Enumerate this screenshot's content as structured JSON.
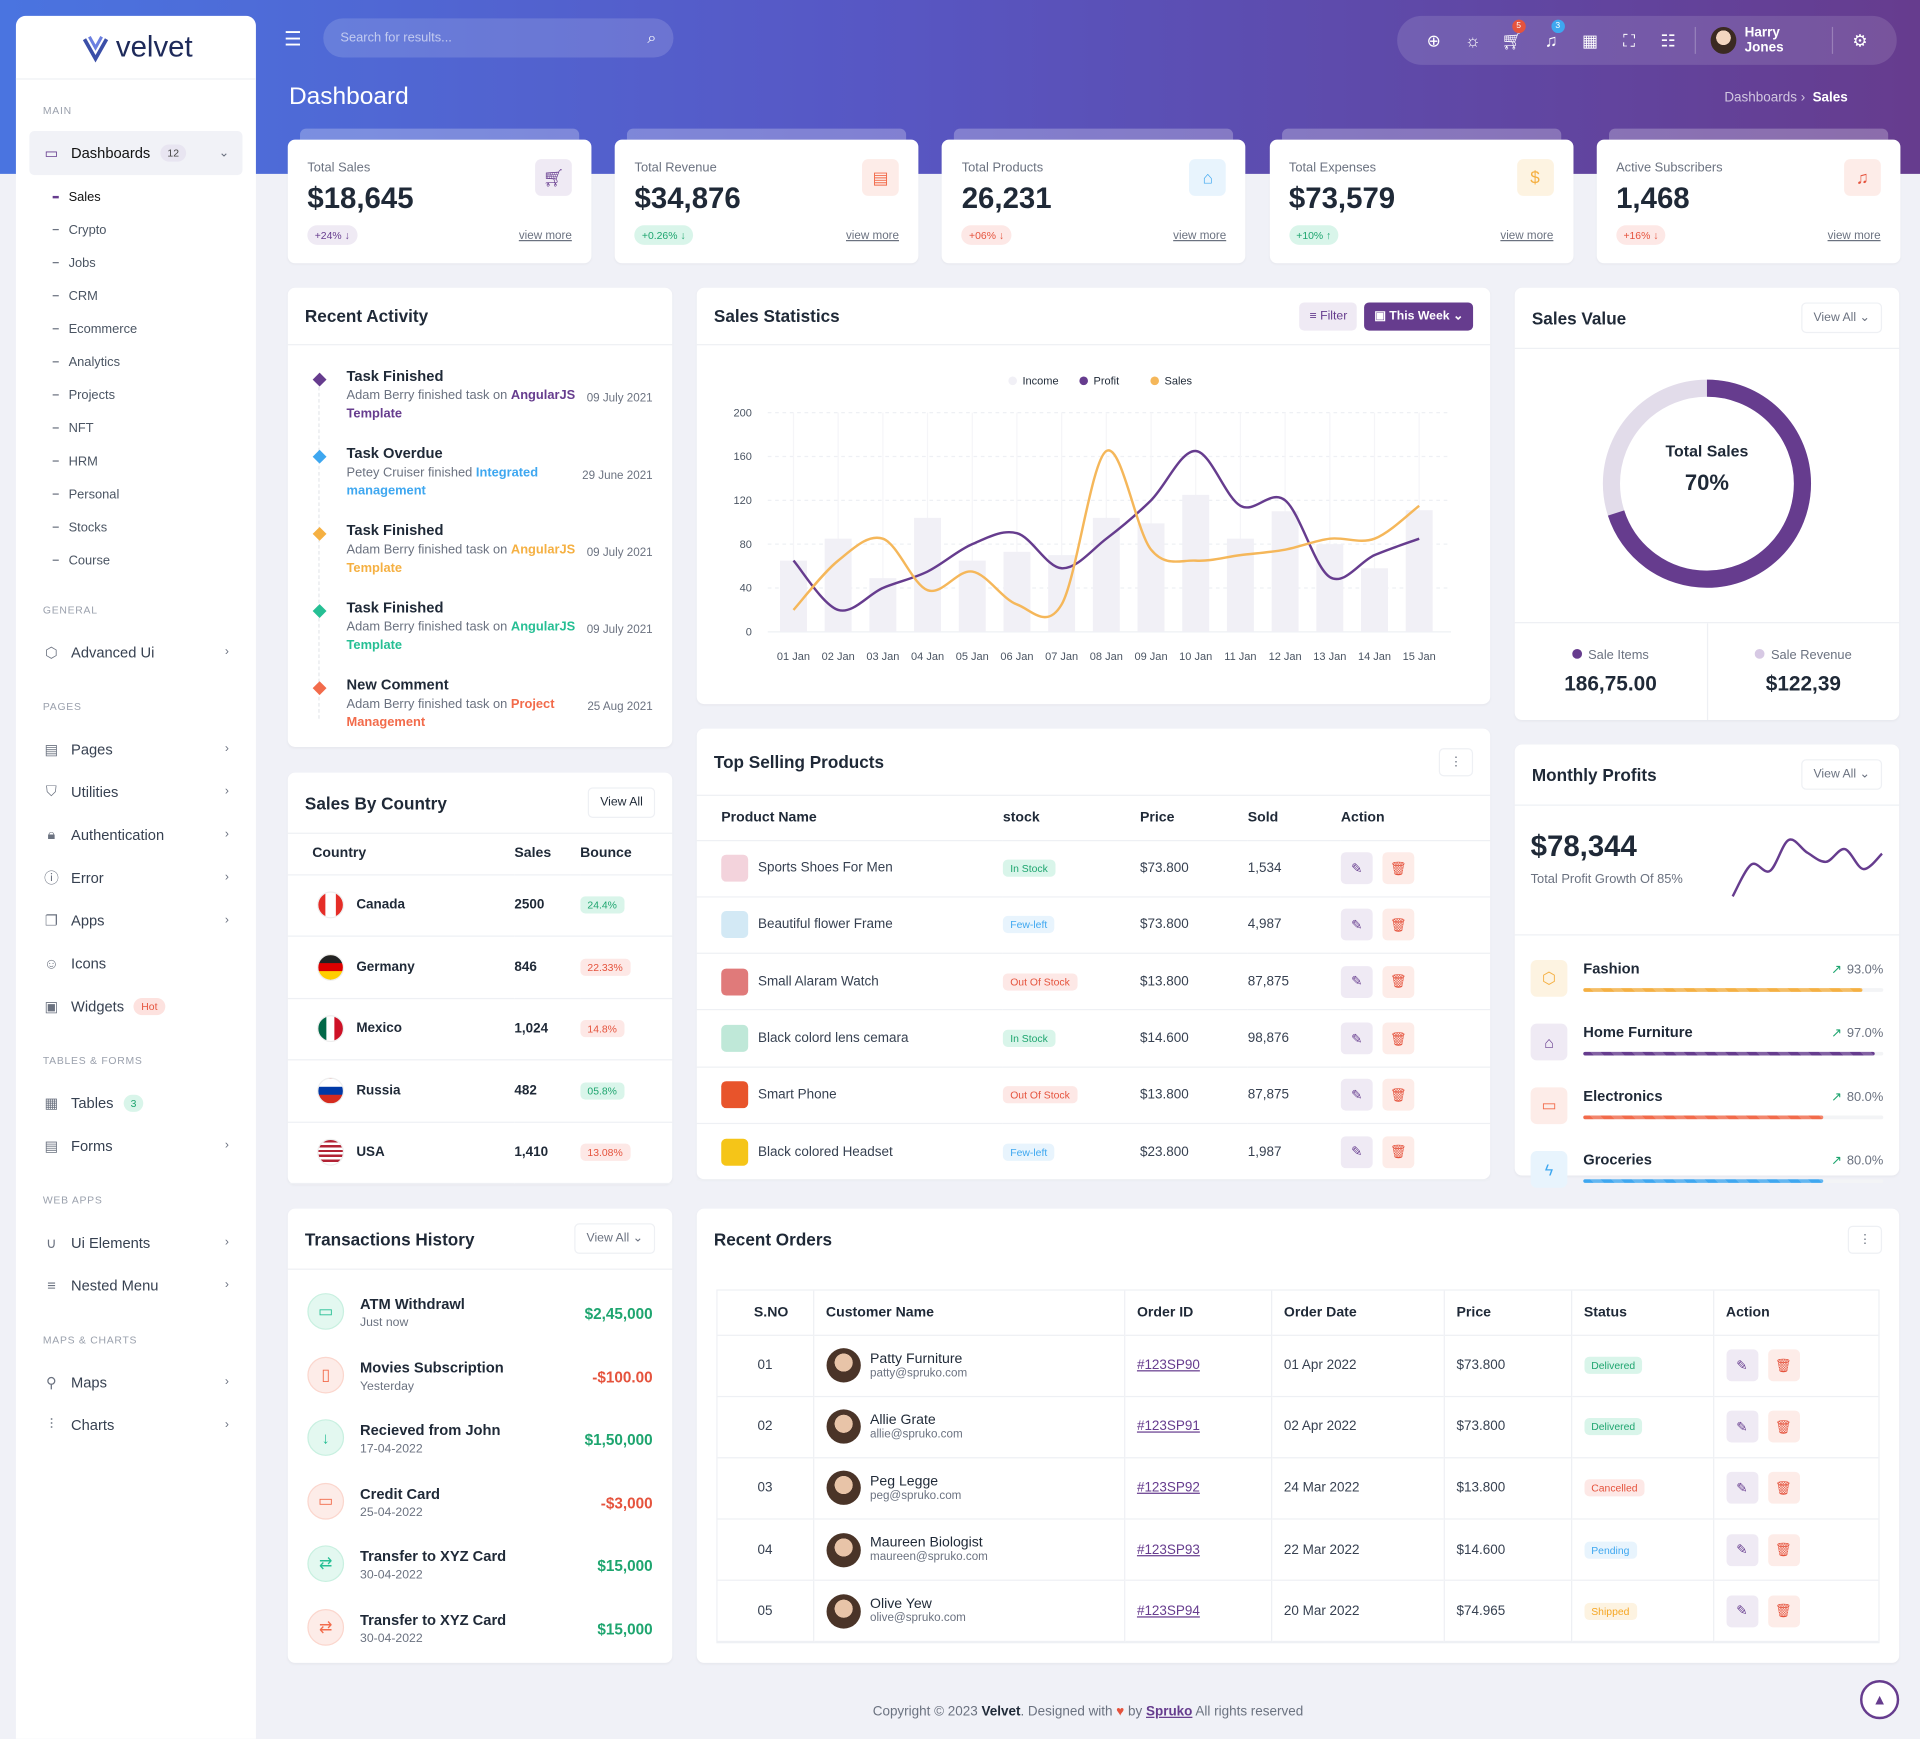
{
  "app": {
    "logo_text": "velvet",
    "page_title": "Dashboard",
    "breadcrumb": [
      "Dashboards",
      "Sales"
    ],
    "primary_color": "#663c8e"
  },
  "topbar": {
    "search_placeholder": "Search for results...",
    "cart_badge": "5",
    "notif_badge": "3",
    "user_name": "Harry Jones",
    "icons": [
      "globe-icon",
      "sun-icon",
      "cart-icon",
      "bell-icon",
      "apps-grid-icon",
      "fullscreen-icon",
      "sliders-icon",
      "gear-icon"
    ]
  },
  "sidebar": {
    "sections": [
      {
        "title": "MAIN",
        "items": [
          {
            "label": "Dashboards",
            "icon": "monitor-icon",
            "badge": "12",
            "open": true,
            "sub": [
              "Sales",
              "Crypto",
              "Jobs",
              "CRM",
              "Ecommerce",
              "Analytics",
              "Projects",
              "NFT",
              "HRM",
              "Personal",
              "Stocks",
              "Course"
            ]
          }
        ]
      },
      {
        "title": "GENERAL",
        "items": [
          {
            "label": "Advanced Ui",
            "icon": "box-icon"
          }
        ]
      },
      {
        "title": "PAGES",
        "items": [
          {
            "label": "Pages",
            "icon": "file-icon"
          },
          {
            "label": "Utilities",
            "icon": "shield-icon"
          },
          {
            "label": "Authentication",
            "icon": "lock-icon"
          },
          {
            "label": "Error",
            "icon": "alert-icon"
          },
          {
            "label": "Apps",
            "icon": "apps-icon"
          },
          {
            "label": "Icons",
            "icon": "smile-icon",
            "nochev": true
          },
          {
            "label": "Widgets",
            "icon": "widget-icon",
            "badge": "Hot",
            "badge_type": "hot",
            "nochev": true
          }
        ]
      },
      {
        "title": "TABLES & FORMS",
        "items": [
          {
            "label": "Tables",
            "icon": "table-icon",
            "badge": "3",
            "badge_type": "green",
            "nochev": true
          },
          {
            "label": "Forms",
            "icon": "form-icon"
          }
        ]
      },
      {
        "title": "WEB APPS",
        "items": [
          {
            "label": "Ui Elements",
            "icon": "magnet-icon"
          },
          {
            "label": "Nested Menu",
            "icon": "menu-icon"
          }
        ]
      },
      {
        "title": "MAPS & CHARTS",
        "items": [
          {
            "label": "Maps",
            "icon": "map-pin-icon"
          },
          {
            "label": "Charts",
            "icon": "chart-icon"
          }
        ]
      }
    ]
  },
  "stats": [
    {
      "label": "Total Sales",
      "value": "$18,645",
      "change": "+24%",
      "dir": "down",
      "more": "view more",
      "icon": "cart-icon",
      "color": "#663c8e",
      "bg": "#efeaf4",
      "pill_bg": "#efeaf4"
    },
    {
      "label": "Total Revenue",
      "value": "$34,876",
      "change": "+0.26%",
      "dir": "down",
      "more": "view more",
      "icon": "archive-icon",
      "color": "#f26b4b",
      "bg": "#fdece8",
      "pill_bg": "#d9f5ea",
      "pill_color": "#1ea56f"
    },
    {
      "label": "Total Products",
      "value": "26,231",
      "change": "+06%",
      "dir": "down",
      "more": "view more",
      "icon": "bag-icon",
      "color": "#3ea7f0",
      "bg": "#e8f4fd",
      "pill_bg": "#fde8e6",
      "pill_color": "#e5533d"
    },
    {
      "label": "Total Expenses",
      "value": "$73,579",
      "change": "+10%",
      "dir": "up",
      "more": "view more",
      "icon": "dollar-icon",
      "color": "#f5b042",
      "bg": "#fdf3e1",
      "pill_bg": "#d9f5ea",
      "pill_color": "#1ea56f"
    },
    {
      "label": "Active Subscribers",
      "value": "1,468",
      "change": "+16%",
      "dir": "down",
      "more": "view more",
      "icon": "bell-icon",
      "color": "#e5533d",
      "bg": "#fdece8",
      "pill_bg": "#fde8e6",
      "pill_color": "#e5533d"
    }
  ],
  "recent_activity": {
    "title": "Recent Activity",
    "items": [
      {
        "title": "Task Finished",
        "text": "Adam Berry finished task on ",
        "link": "AngularJS Template",
        "date": "09 July 2021",
        "color": "#663c8e"
      },
      {
        "title": "Task Overdue",
        "text": "Petey Cruiser finished ",
        "link": "Integrated management",
        "date": "29 June 2021",
        "color": "#3ea7f0"
      },
      {
        "title": "Task Finished",
        "text": "Adam Berry finished task on ",
        "link": "AngularJS Template",
        "date": "09 July 2021",
        "color": "#f5b042"
      },
      {
        "title": "Task Finished",
        "text": "Adam Berry finished task on ",
        "link": "AngularJS Template",
        "date": "09 July 2021",
        "color": "#26bf94"
      },
      {
        "title": "New Comment",
        "text": "Adam Berry finished task on ",
        "link": "Project Management",
        "date": "25 Aug 2021",
        "color": "#f26b4b"
      }
    ]
  },
  "sales_statistics": {
    "title": "Sales Statistics",
    "filter_label": "Filter",
    "period_label": "This Week"
  },
  "chart_data": [
    {
      "type": "bar+line",
      "categories": [
        "01 Jan",
        "02 Jan",
        "03 Jan",
        "04 Jan",
        "05 Jan",
        "06 Jan",
        "07 Jan",
        "08 Jan",
        "09 Jan",
        "10 Jan",
        "11 Jan",
        "12 Jan",
        "13 Jan",
        "14 Jan",
        "15 Jan"
      ],
      "series": [
        {
          "name": "Income",
          "kind": "bar",
          "color": "#f1f0f6",
          "values": [
            65,
            85,
            49,
            104,
            65,
            73,
            70,
            104,
            99,
            125,
            85,
            110,
            80,
            58,
            111
          ]
        },
        {
          "name": "Profit",
          "kind": "line",
          "color": "#663c8e",
          "values": [
            65,
            20,
            40,
            55,
            80,
            90,
            58,
            85,
            120,
            165,
            115,
            120,
            50,
            70,
            85
          ]
        },
        {
          "name": "Sales",
          "kind": "line",
          "color": "#f5b75a",
          "values": [
            20,
            65,
            85,
            38,
            55,
            25,
            25,
            165,
            75,
            65,
            70,
            75,
            85,
            85,
            115
          ]
        }
      ],
      "yticks": [
        0,
        40,
        80,
        120,
        160,
        200
      ],
      "ylim": [
        0,
        200
      ],
      "grid": true,
      "legend": "top"
    },
    {
      "type": "line",
      "values": [
        10,
        45,
        38,
        72,
        58,
        48,
        62,
        40,
        57
      ]
    }
  ],
  "sales_value": {
    "title": "Sales Value",
    "view_all": "View All",
    "center_label": "Total Sales",
    "percent": 70,
    "percent_label": "70%",
    "colors": {
      "filled": "#663c8e",
      "rest": "#e2dcea"
    },
    "legend": [
      {
        "label": "Sale Items",
        "value": "186,75.00",
        "color": "#663c8e"
      },
      {
        "label": "Sale Revenue",
        "value": "$122,39",
        "color": "#d7c9e4"
      }
    ]
  },
  "sales_by_country": {
    "title": "Sales By Country",
    "view_all": "View All",
    "columns": [
      "Country",
      "Sales",
      "Bounce"
    ],
    "rows": [
      {
        "country": "Canada",
        "sales": "2500",
        "bounce": "24.4%",
        "good": true
      },
      {
        "country": "Germany",
        "sales": "846",
        "bounce": "22.33%",
        "good": false
      },
      {
        "country": "Mexico",
        "sales": "1,024",
        "bounce": "14.8%",
        "good": false
      },
      {
        "country": "Russia",
        "sales": "482",
        "bounce": "05.8%",
        "good": true
      },
      {
        "country": "USA",
        "sales": "1,410",
        "bounce": "13.08%",
        "good": false
      }
    ]
  },
  "top_products": {
    "title": "Top Selling Products",
    "columns": [
      "Product Name",
      "stock",
      "Price",
      "Sold",
      "Action"
    ],
    "rows": [
      {
        "name": "Sports Shoes For Men",
        "stock": "In Stock",
        "price": "$73.800",
        "sold": "1,534",
        "thumb": "#f3d3dc"
      },
      {
        "name": "Beautiful flower Frame",
        "stock": "Few-left",
        "price": "$73.800",
        "sold": "4,987",
        "thumb": "#d3e9f5"
      },
      {
        "name": "Small Alaram Watch",
        "stock": "Out Of Stock",
        "price": "$13.800",
        "sold": "87,875",
        "thumb": "#e07a7a"
      },
      {
        "name": "Black colord lens cemara",
        "stock": "In Stock",
        "price": "$14.600",
        "sold": "98,876",
        "thumb": "#bfe8d8"
      },
      {
        "name": "Smart Phone",
        "stock": "Out Of Stock",
        "price": "$13.800",
        "sold": "87,875",
        "thumb": "#e8542b"
      },
      {
        "name": "Black colored Headset",
        "stock": "Few-left",
        "price": "$23.800",
        "sold": "1,987",
        "thumb": "#f5c518"
      }
    ]
  },
  "monthly_profits": {
    "title": "Monthly Profits",
    "view_all": "View All",
    "amount": "$78,344",
    "subtitle": "Total Profit Growth Of 85%",
    "items": [
      {
        "name": "Fashion",
        "percent": "93.0%",
        "value": 93,
        "color": "#f5b042",
        "bg": "#fdf3e1",
        "icon": "box-icon"
      },
      {
        "name": "Home Furniture",
        "percent": "97.0%",
        "value": 97,
        "color": "#663c8e",
        "bg": "#efeaf4",
        "icon": "home-icon"
      },
      {
        "name": "Electronics",
        "percent": "80.0%",
        "value": 80,
        "color": "#f26b4b",
        "bg": "#fdece8",
        "icon": "tv-icon"
      },
      {
        "name": "Groceries",
        "percent": "80.0%",
        "value": 80,
        "color": "#3ea7f0",
        "bg": "#e8f4fd",
        "icon": "bolt-icon"
      }
    ]
  },
  "transactions": {
    "title": "Transactions History",
    "view_all": "View All",
    "items": [
      {
        "name": "ATM Withdrawl",
        "sub": "Just now",
        "amount": "$2,45,000",
        "positive": true,
        "icon": "atm-icon"
      },
      {
        "name": "Movies Subscription",
        "sub": "Yesterday",
        "amount": "-$100.00",
        "positive": false,
        "icon": "phone-icon"
      },
      {
        "name": "Recieved from John",
        "sub": "17-04-2022",
        "amount": "$1,50,000",
        "positive": true,
        "icon": "arrow-down-icon"
      },
      {
        "name": "Credit Card",
        "sub": "25-04-2022",
        "amount": "-$3,000",
        "positive": false,
        "icon": "credit-card-icon"
      },
      {
        "name": "Transfer to XYZ Card",
        "sub": "30-04-2022",
        "amount": "$15,000",
        "positive": true,
        "icon": "transfer-icon"
      },
      {
        "name": "Transfer to XYZ Card",
        "sub": "30-04-2022",
        "amount": "$15,000",
        "positive": false,
        "amount_positive_color": true,
        "icon": "transfer-icon"
      }
    ]
  },
  "recent_orders": {
    "title": "Recent Orders",
    "columns": [
      "S.NO",
      "Customer Name",
      "Order ID",
      "Order Date",
      "Price",
      "Status",
      "Action"
    ],
    "rows": [
      {
        "sno": "01",
        "name": "Patty Furniture",
        "email": "patty@spruko.com",
        "order": "#123SP90",
        "date": "01 Apr 2022",
        "price": "$73.800",
        "status": "Delivered"
      },
      {
        "sno": "02",
        "name": "Allie Grate",
        "email": "allie@spruko.com",
        "order": "#123SP91",
        "date": "02 Apr 2022",
        "price": "$73.800",
        "status": "Delivered"
      },
      {
        "sno": "03",
        "name": "Peg Legge",
        "email": "peg@spruko.com",
        "order": "#123SP92",
        "date": "24 Mar 2022",
        "price": "$13.800",
        "status": "Cancelled"
      },
      {
        "sno": "04",
        "name": "Maureen Biologist",
        "email": "maureen@spruko.com",
        "order": "#123SP93",
        "date": "22 Mar 2022",
        "price": "$14.600",
        "status": "Pending"
      },
      {
        "sno": "05",
        "name": "Olive Yew",
        "email": "olive@spruko.com",
        "order": "#123SP94",
        "date": "20 Mar 2022",
        "price": "$74.965",
        "status": "Shipped"
      }
    ]
  },
  "footer": {
    "prefix": "Copyright © 2023 ",
    "brand": "Velvet",
    "mid": ". Designed with ",
    "by": " by ",
    "company": "Spruko",
    "suffix": " All rights reserved"
  }
}
